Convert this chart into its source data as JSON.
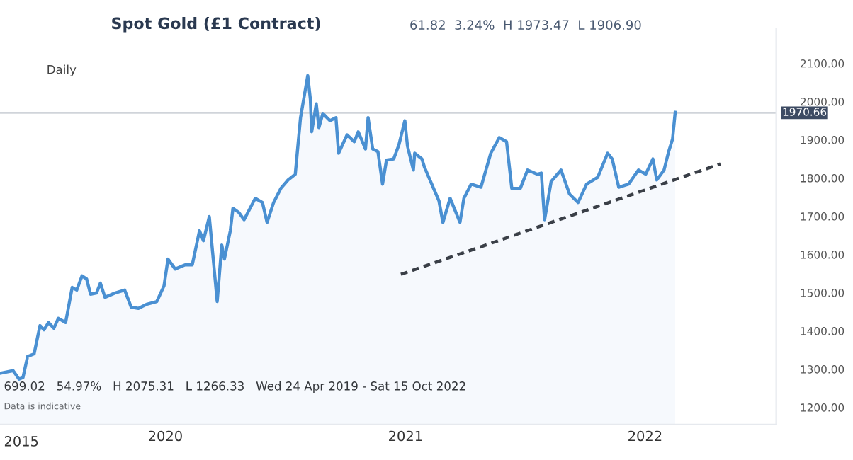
{
  "chart_data": {
    "type": "area",
    "title": "Spot Gold (£1 Contract)",
    "subtitle": "61.82  3.24%  H 1973.47  L 1906.90",
    "annotations": [
      "Daily",
      "2015",
      "699.02   54.97%   H 2075.31   L 1266.33   Wed 24 Apr 2019 - Sat 15 Oct 2022",
      "Data is indicative"
    ],
    "xlim": [
      "2019-04-24",
      "2022-07-20"
    ],
    "xticks": [
      {
        "value": "2020-01-01",
        "label": "2020"
      },
      {
        "value": "2021-01-01",
        "label": "2021"
      },
      {
        "value": "2022-01-01",
        "label": "2022"
      }
    ],
    "ylim": [
      1155,
      2190
    ],
    "yticks": [
      {
        "value": 1200,
        "label": "1200.00"
      },
      {
        "value": 1300,
        "label": "1300.00"
      },
      {
        "value": 1400,
        "label": "1400.00"
      },
      {
        "value": 1500,
        "label": "1500.00"
      },
      {
        "value": 1600,
        "label": "1600.00"
      },
      {
        "value": 1700,
        "label": "1700.00"
      },
      {
        "value": 1800,
        "label": "1800.00"
      },
      {
        "value": 1900,
        "label": "1900.00"
      },
      {
        "value": 2000,
        "label": "2000.00"
      },
      {
        "value": 2100,
        "label": "2100.00"
      }
    ],
    "grid": false,
    "legend": false,
    "ref_lines": [
      {
        "axis": "y",
        "value": 1970.66,
        "label": "1970.66",
        "color": "#d0d4da"
      }
    ],
    "series": [
      {
        "color": "#4a90d2",
        "x": [
          "2019-04-24",
          "2019-05-14",
          "2019-05-23",
          "2019-05-29",
          "2019-06-05",
          "2019-06-15",
          "2019-06-24",
          "2019-06-30",
          "2019-07-07",
          "2019-07-15",
          "2019-07-22",
          "2019-08-02",
          "2019-08-12",
          "2019-08-19",
          "2019-08-27",
          "2019-09-03",
          "2019-09-09",
          "2019-09-18",
          "2019-09-24",
          "2019-10-01",
          "2019-10-16",
          "2019-10-31",
          "2019-11-10",
          "2019-11-21",
          "2019-12-04",
          "2019-12-19",
          "2019-12-30",
          "2020-01-05",
          "2020-01-16",
          "2020-01-31",
          "2020-02-11",
          "2020-02-22",
          "2020-02-28",
          "2020-03-08",
          "2020-03-14",
          "2020-03-20",
          "2020-03-27",
          "2020-03-31",
          "2020-04-09",
          "2020-04-13",
          "2020-04-22",
          "2020-04-30",
          "2020-05-17",
          "2020-05-28",
          "2020-06-04",
          "2020-06-14",
          "2020-06-25",
          "2020-07-06",
          "2020-07-17",
          "2020-07-25",
          "2020-08-05",
          "2020-08-09",
          "2020-08-11",
          "2020-08-18",
          "2020-08-22",
          "2020-08-28",
          "2020-09-08",
          "2020-09-17",
          "2020-09-21",
          "2020-10-04",
          "2020-10-15",
          "2020-10-21",
          "2020-11-01",
          "2020-11-05",
          "2020-11-12",
          "2020-11-20",
          "2020-11-27",
          "2020-12-03",
          "2020-12-14",
          "2020-12-22",
          "2020-12-31",
          "2021-01-04",
          "2021-01-13",
          "2021-01-15",
          "2021-01-26",
          "2021-01-30",
          "2021-02-21",
          "2021-02-27",
          "2021-03-10",
          "2021-03-25",
          "2021-03-31",
          "2021-04-11",
          "2021-04-26",
          "2021-05-11",
          "2021-05-24",
          "2021-06-04",
          "2021-06-12",
          "2021-06-25",
          "2021-07-06",
          "2021-07-21",
          "2021-07-27",
          "2021-08-01",
          "2021-08-11",
          "2021-08-26",
          "2021-09-08",
          "2021-09-21",
          "2021-10-04",
          "2021-10-21",
          "2021-11-05",
          "2021-11-12",
          "2021-11-22",
          "2021-12-07",
          "2021-12-22",
          "2022-01-02",
          "2022-01-13",
          "2022-01-19",
          "2022-01-30",
          "2022-02-06",
          "2022-02-12",
          "2022-02-16"
        ],
        "values": [
          1289,
          1296,
          1274,
          1278,
          1333,
          1340,
          1414,
          1403,
          1422,
          1407,
          1433,
          1422,
          1514,
          1507,
          1544,
          1536,
          1496,
          1499,
          1525,
          1488,
          1499,
          1507,
          1462,
          1459,
          1470,
          1477,
          1518,
          1588,
          1562,
          1573,
          1573,
          1662,
          1636,
          1699,
          1588,
          1477,
          1625,
          1588,
          1662,
          1721,
          1710,
          1691,
          1747,
          1736,
          1684,
          1736,
          1773,
          1795,
          1810,
          1958,
          2068,
          2006,
          1921,
          1994,
          1932,
          1969,
          1950,
          1958,
          1865,
          1913,
          1895,
          1921,
          1876,
          1958,
          1876,
          1869,
          1784,
          1847,
          1850,
          1887,
          1950,
          1884,
          1821,
          1865,
          1850,
          1828,
          1740,
          1684,
          1747,
          1684,
          1747,
          1784,
          1776,
          1865,
          1906,
          1895,
          1773,
          1773,
          1821,
          1810,
          1813,
          1691,
          1791,
          1821,
          1758,
          1736,
          1784,
          1802,
          1865,
          1850,
          1776,
          1784,
          1821,
          1810,
          1850,
          1795,
          1821,
          1869,
          1902,
          1972
        ]
      },
      {
        "type": "line",
        "color": "#3a3f47",
        "line_style": "dashed",
        "x": [
          "2020-12-25",
          "2022-04-26"
        ],
        "values": [
          1548,
          1837
        ]
      }
    ]
  }
}
